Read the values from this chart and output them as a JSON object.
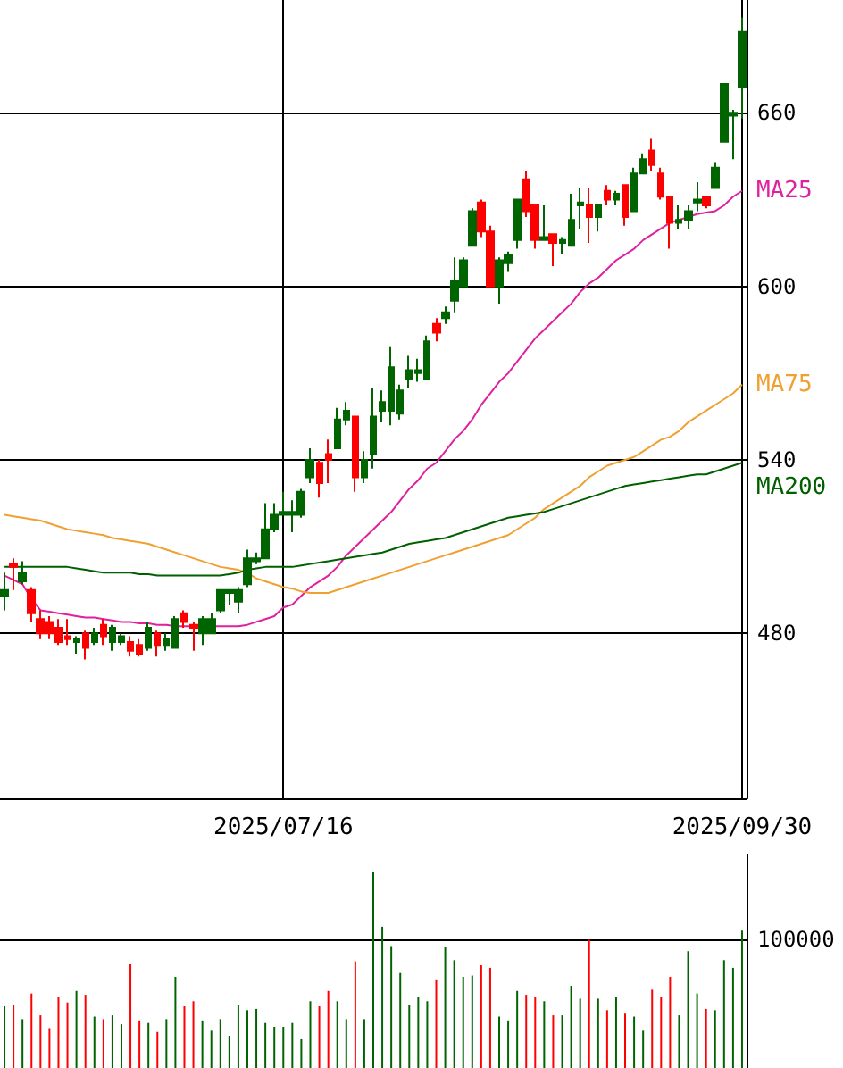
{
  "chart_data": [
    {
      "type": "candlestick",
      "categories": [
        null,
        null,
        null,
        null,
        null,
        null,
        null,
        null,
        null,
        null,
        null,
        null,
        null,
        null,
        null,
        null,
        null,
        null,
        null,
        null,
        null,
        null,
        null,
        null,
        null,
        null,
        null,
        null,
        null,
        null,
        null,
        "2025/07/16",
        null,
        null,
        null,
        null,
        null,
        null,
        null,
        null,
        null,
        null,
        null,
        null,
        null,
        null,
        null,
        null,
        null,
        null,
        null,
        null,
        null,
        null,
        null,
        null,
        null,
        null,
        null,
        null,
        null,
        null,
        null,
        null,
        null,
        null,
        null,
        null,
        null,
        null,
        null,
        null,
        null,
        null,
        null,
        null,
        null,
        null,
        null,
        null,
        null,
        null,
        "2025/09/30"
      ],
      "ohlc": [
        [
          493,
          501,
          488,
          495
        ],
        [
          504,
          506,
          495,
          503
        ],
        [
          498,
          505,
          497,
          501
        ],
        [
          495,
          496,
          484,
          487
        ],
        [
          485,
          488,
          478,
          480
        ],
        [
          484,
          486,
          478,
          480
        ],
        [
          482,
          485,
          476,
          477
        ],
        [
          479,
          485,
          476,
          478
        ],
        [
          477,
          479,
          473,
          478
        ],
        [
          480,
          481,
          471,
          475
        ],
        [
          477,
          482,
          476,
          480
        ],
        [
          483,
          485,
          476,
          479
        ],
        [
          477,
          483,
          474,
          482
        ],
        [
          477,
          480,
          476,
          479
        ],
        [
          477,
          479,
          472,
          474
        ],
        [
          476,
          478,
          472,
          473
        ],
        [
          475,
          484,
          474,
          482
        ],
        [
          480,
          481,
          472,
          476
        ],
        [
          476,
          480,
          474,
          478
        ],
        [
          475,
          486,
          475,
          485
        ],
        [
          487,
          488,
          482,
          484
        ],
        [
          483,
          484,
          474,
          482
        ],
        [
          480,
          486,
          476,
          485
        ],
        [
          480,
          487,
          480,
          485
        ],
        [
          488,
          495,
          487,
          495
        ],
        [
          494,
          495,
          490,
          495
        ],
        [
          491,
          496,
          487,
          495
        ],
        [
          497,
          509,
          496,
          506
        ],
        [
          505,
          508,
          504,
          506
        ],
        [
          506,
          525,
          506,
          516
        ],
        [
          516,
          525,
          515,
          521
        ],
        [
          521,
          529,
          521,
          522
        ],
        [
          521,
          526,
          515,
          522
        ],
        [
          521,
          530,
          520,
          529
        ],
        [
          534,
          544,
          532,
          540
        ],
        [
          539,
          540,
          527,
          532
        ],
        [
          542,
          547,
          532,
          540
        ],
        [
          544,
          558,
          544,
          554
        ],
        [
          554,
          560,
          552,
          557
        ],
        [
          555,
          555,
          529,
          534
        ],
        [
          534,
          543,
          532,
          540
        ],
        [
          542,
          565,
          537,
          555
        ],
        [
          557,
          564,
          553,
          560
        ],
        [
          557,
          579,
          552,
          572
        ],
        [
          556,
          566,
          554,
          564
        ],
        [
          568,
          576,
          565,
          571
        ],
        [
          570,
          575,
          567,
          571
        ],
        [
          568,
          583,
          568,
          581
        ],
        [
          587,
          589,
          581,
          584
        ],
        [
          589,
          593,
          587,
          591
        ],
        [
          595,
          610,
          591,
          602
        ],
        [
          600,
          610,
          600,
          609
        ],
        [
          614,
          627,
          614,
          626
        ],
        [
          629,
          630,
          617,
          619
        ],
        [
          619,
          621,
          600,
          600
        ],
        [
          600,
          610,
          594,
          609
        ],
        [
          608,
          612,
          605,
          611
        ],
        [
          616,
          630,
          613,
          630
        ],
        [
          637,
          640,
          624,
          626
        ],
        [
          628,
          628,
          613,
          616
        ],
        [
          616,
          628,
          616,
          617
        ],
        [
          618,
          618,
          607,
          615
        ],
        [
          615,
          617,
          611,
          616
        ],
        [
          614,
          632,
          614,
          623
        ],
        [
          628,
          634,
          620,
          629
        ],
        [
          628,
          634,
          615,
          624
        ],
        [
          624,
          628,
          619,
          628
        ],
        [
          633,
          635,
          628,
          630
        ],
        [
          630,
          633,
          628,
          632
        ],
        [
          635,
          635,
          621,
          624
        ],
        [
          626,
          641,
          626,
          639
        ],
        [
          639,
          646,
          639,
          644
        ],
        [
          647,
          651,
          640,
          642
        ],
        [
          639,
          641,
          630,
          631
        ],
        [
          631,
          631,
          613,
          622
        ],
        [
          622,
          628,
          620,
          623
        ],
        [
          623,
          628,
          620,
          626
        ],
        [
          629,
          636,
          626,
          630
        ],
        [
          631,
          631,
          627,
          628
        ],
        [
          634,
          643,
          634,
          641
        ],
        [
          650,
          670,
          650,
          670
        ],
        [
          659,
          661,
          644,
          660
        ],
        [
          669,
          693,
          658,
          688
        ]
      ],
      "colors": [
        "#006400",
        "#ff0000",
        "#006400",
        "#ff0000",
        "#ff0000",
        "#ff0000",
        "#ff0000",
        "#ff0000",
        "#006400",
        "#ff0000",
        "#006400",
        "#ff0000",
        "#006400",
        "#006400",
        "#ff0000",
        "#ff0000",
        "#006400",
        "#ff0000",
        "#006400",
        "#006400",
        "#ff0000",
        "#ff0000",
        "#006400",
        "#006400",
        "#006400",
        "#006400",
        "#006400",
        "#006400",
        "#006400",
        "#006400",
        "#006400",
        "#006400",
        "#006400",
        "#006400",
        "#006400",
        "#ff0000",
        "#ff0000",
        "#006400",
        "#006400",
        "#ff0000",
        "#006400",
        "#006400",
        "#006400",
        "#006400",
        "#006400",
        "#006400",
        "#006400",
        "#006400",
        "#ff0000",
        "#006400",
        "#006400",
        "#006400",
        "#006400",
        "#ff0000",
        "#ff0000",
        "#006400",
        "#006400",
        "#006400",
        "#ff0000",
        "#ff0000",
        "#006400",
        "#ff0000",
        "#006400",
        "#006400",
        "#006400",
        "#ff0000",
        "#006400",
        "#ff0000",
        "#006400",
        "#ff0000",
        "#006400",
        "#006400",
        "#ff0000",
        "#ff0000",
        "#ff0000",
        "#006400",
        "#006400",
        "#006400",
        "#ff0000",
        "#006400",
        "#006400",
        "#006400",
        "#006400"
      ],
      "series": [
        {
          "name": "MA25",
          "type": "line",
          "color": "#e0209f",
          "values": [
            500,
            498.5,
            497,
            492,
            488,
            487.5,
            487,
            486.5,
            486,
            485.5,
            485.5,
            485,
            484.5,
            484,
            484,
            483.5,
            483.5,
            483,
            483,
            482.5,
            482.5,
            482.5,
            null,
            482.5,
            482.5,
            482.5,
            482.5,
            483,
            484,
            485,
            486,
            489,
            490,
            493,
            496,
            498,
            500,
            503,
            507,
            510,
            513,
            516,
            519,
            522,
            526,
            530,
            533,
            537,
            539,
            543,
            547,
            550,
            554,
            559,
            563,
            567,
            570,
            574,
            578,
            582,
            585,
            588,
            591,
            594,
            598,
            601,
            603,
            606,
            609,
            611,
            613,
            616,
            618,
            620,
            622,
            623,
            624,
            625,
            625.5,
            626,
            628,
            631,
            633
          ]
        },
        {
          "name": "MA75",
          "type": "line",
          "color": "#f0a030",
          "values": [
            521,
            520.5,
            520,
            519.5,
            519,
            518,
            517,
            516,
            515.5,
            515,
            514.5,
            514,
            513,
            512.5,
            512,
            511.5,
            511,
            510,
            509,
            508,
            507,
            506,
            505,
            504,
            503,
            502.5,
            502,
            501,
            499,
            498,
            497,
            496,
            495.5,
            494.5,
            494,
            494,
            494,
            495,
            496,
            497,
            498,
            499,
            500,
            501,
            502,
            503,
            504,
            505,
            506,
            507,
            508,
            509,
            510,
            511,
            512,
            513,
            514,
            516,
            518,
            520,
            523,
            525,
            527,
            529,
            531,
            534,
            536,
            538,
            539,
            540,
            541,
            543,
            545,
            547,
            548,
            550,
            553,
            555,
            557,
            559,
            561,
            563,
            566
          ]
        },
        {
          "name": "MA200",
          "type": "line",
          "color": "#006000",
          "values": [
            503,
            503,
            503,
            503,
            503,
            503,
            503,
            503,
            502.5,
            502,
            501.5,
            501,
            501,
            501,
            501,
            500.5,
            500.5,
            500,
            500,
            500,
            500,
            500,
            500,
            500,
            500,
            500.5,
            501,
            502,
            502.5,
            503,
            503,
            503,
            503,
            503.5,
            504,
            504.5,
            505,
            505.5,
            506,
            506.5,
            507,
            507.5,
            508,
            509,
            510,
            511,
            511.5,
            512,
            512.5,
            513,
            514,
            515,
            516,
            517,
            518,
            519,
            520,
            520.5,
            521,
            521.5,
            522,
            523,
            524,
            525,
            526,
            527,
            528,
            529,
            530,
            531,
            531.5,
            532,
            532.5,
            533,
            533.5,
            534,
            534.5,
            535,
            535,
            536,
            537,
            538,
            539
          ]
        }
      ],
      "ylim": [
        423,
        699
      ],
      "yticks": [
        480,
        540,
        600,
        660
      ],
      "grid": true,
      "marker": "none",
      "line_style": "solid"
    },
    {
      "type": "bar",
      "tick_labels": "y",
      "ylim": [
        0,
        167000
      ],
      "yticks": [
        100000
      ],
      "grid": "y",
      "categories": [
        null,
        null,
        null,
        null,
        null,
        null,
        null,
        null,
        null,
        null,
        null,
        null,
        null,
        null,
        null,
        null,
        null,
        null,
        null,
        null,
        null,
        null,
        null,
        null,
        null,
        null,
        null,
        null,
        null,
        null,
        null,
        null,
        null,
        null,
        null,
        null,
        null,
        null,
        null,
        null,
        null,
        null,
        null,
        null,
        null,
        null,
        null,
        null,
        null,
        null,
        null,
        null,
        null,
        null,
        null,
        null,
        null,
        null,
        null,
        null,
        null,
        null,
        null,
        null,
        null,
        null,
        null,
        null,
        null,
        null,
        null,
        null,
        null,
        null,
        null,
        null,
        null,
        null,
        null,
        null,
        null,
        null,
        null
      ],
      "values": [
        48000,
        49000,
        38000,
        58000,
        41000,
        31000,
        55000,
        51000,
        60000,
        57000,
        40000,
        38000,
        41000,
        34000,
        81000,
        37000,
        35000,
        28000,
        38000,
        71000,
        48000,
        52000,
        37000,
        29000,
        38000,
        25000,
        49000,
        45000,
        46000,
        35000,
        32000,
        32000,
        35000,
        23000,
        52000,
        48000,
        60000,
        52000,
        38000,
        83000,
        38000,
        153000,
        110000,
        95000,
        74000,
        49000,
        55000,
        52000,
        69000,
        94000,
        84000,
        71000,
        72000,
        80000,
        78000,
        40000,
        37000,
        60000,
        57000,
        55000,
        52000,
        41000,
        41000,
        64000,
        54000,
        100000,
        54000,
        45000,
        55000,
        43000,
        40000,
        29000,
        61000,
        55000,
        71000,
        41000,
        91000,
        58000,
        46000,
        45000,
        84000,
        78000,
        107000
      ],
      "colors": [
        "#006400",
        "#ff0000",
        "#006400",
        "#ff0000",
        "#ff0000",
        "#ff0000",
        "#ff0000",
        "#ff0000",
        "#006400",
        "#ff0000",
        "#006400",
        "#ff0000",
        "#006400",
        "#006400",
        "#ff0000",
        "#ff0000",
        "#006400",
        "#ff0000",
        "#006400",
        "#006400",
        "#ff0000",
        "#ff0000",
        "#006400",
        "#006400",
        "#006400",
        "#006400",
        "#006400",
        "#006400",
        "#006400",
        "#006400",
        "#006400",
        "#006400",
        "#006400",
        "#006400",
        "#006400",
        "#ff0000",
        "#ff0000",
        "#006400",
        "#006400",
        "#ff0000",
        "#006400",
        "#006400",
        "#006400",
        "#006400",
        "#006400",
        "#006400",
        "#006400",
        "#006400",
        "#ff0000",
        "#006400",
        "#006400",
        "#006400",
        "#006400",
        "#ff0000",
        "#ff0000",
        "#006400",
        "#006400",
        "#006400",
        "#ff0000",
        "#ff0000",
        "#006400",
        "#ff0000",
        "#006400",
        "#006400",
        "#006400",
        "#ff0000",
        "#006400",
        "#ff0000",
        "#006400",
        "#ff0000",
        "#006400",
        "#006400",
        "#ff0000",
        "#ff0000",
        "#ff0000",
        "#006400",
        "#006400",
        "#006400",
        "#ff0000",
        "#006400",
        "#006400",
        "#006400",
        "#006400"
      ]
    }
  ]
}
